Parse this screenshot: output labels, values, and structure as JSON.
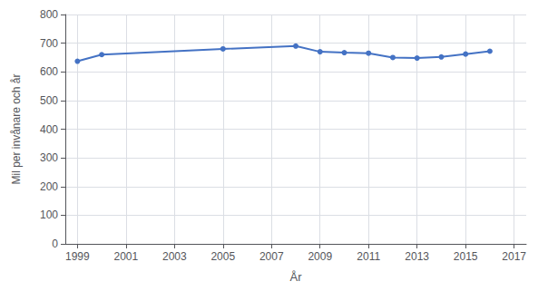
{
  "chart_data": {
    "type": "line",
    "x": [
      1999,
      2000,
      2005,
      2008,
      2009,
      2010,
      2011,
      2012,
      2013,
      2014,
      2015,
      2016
    ],
    "values": [
      637,
      660,
      680,
      690,
      670,
      667,
      665,
      650,
      648,
      652,
      662,
      672
    ],
    "color": "#4472c4",
    "marker": "circle",
    "xlabel": "År",
    "ylabel": "Mil per invånare och år",
    "xlim": [
      1998.5,
      2017.5
    ],
    "ylim": [
      0,
      800
    ],
    "xticks": [
      1999,
      2001,
      2003,
      2005,
      2007,
      2009,
      2011,
      2013,
      2015,
      2017
    ],
    "yticks": [
      0,
      100,
      200,
      300,
      400,
      500,
      600,
      700,
      800
    ],
    "grid": true
  }
}
